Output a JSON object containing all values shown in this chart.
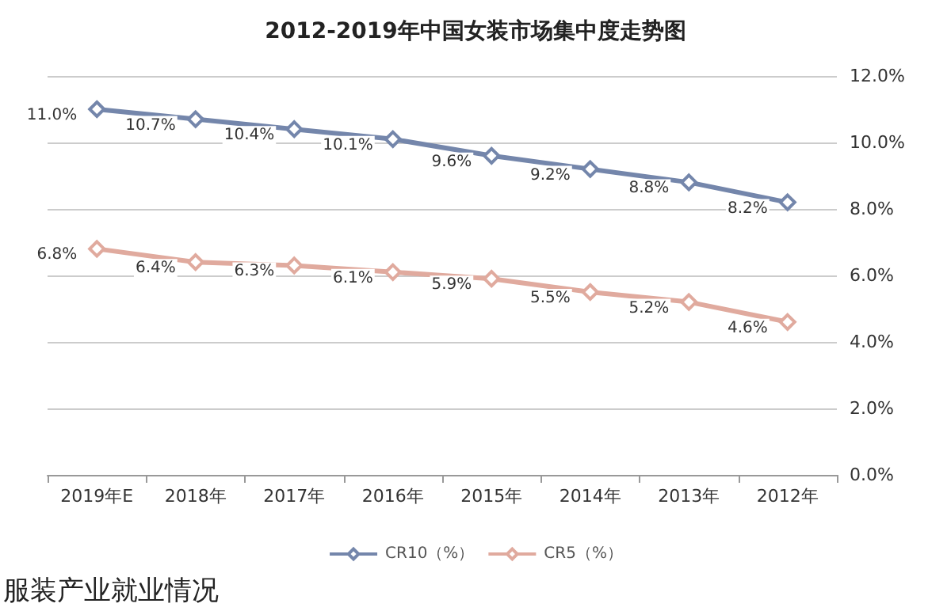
{
  "chart_data": {
    "type": "line",
    "title": "2012-2019年中国女装市场集中度走势图",
    "categories": [
      "2019年E",
      "2018年",
      "2017年",
      "2016年",
      "2015年",
      "2014年",
      "2013年",
      "2012年"
    ],
    "series": [
      {
        "name": "CR10（%）",
        "color": "#7486ab",
        "values": [
          11.0,
          10.7,
          10.4,
          10.1,
          9.6,
          9.2,
          8.8,
          8.2
        ],
        "value_labels": [
          "11.0%",
          "10.7%",
          "10.4%",
          "10.1%",
          "9.6%",
          "9.2%",
          "8.8%",
          "8.2%"
        ]
      },
      {
        "name": "CR5（%）",
        "color": "#e0aa9e",
        "values": [
          6.8,
          6.4,
          6.3,
          6.1,
          5.9,
          5.5,
          5.2,
          4.6
        ],
        "value_labels": [
          "6.8%",
          "6.4%",
          "6.3%",
          "6.1%",
          "5.9%",
          "5.5%",
          "5.2%",
          "4.6%"
        ]
      }
    ],
    "ylim": [
      0,
      12
    ],
    "yticks": [
      {
        "value": 0,
        "label": "0.0%"
      },
      {
        "value": 2,
        "label": "2.0%"
      },
      {
        "value": 4,
        "label": "4.0%"
      },
      {
        "value": 6,
        "label": "6.0%"
      },
      {
        "value": 8,
        "label": "8.0%"
      },
      {
        "value": 10,
        "label": "10.0%"
      },
      {
        "value": 12,
        "label": "12.0%"
      }
    ],
    "grid": "y",
    "legend": "bottom",
    "marker": "diamond",
    "line_style": "solid",
    "annotations": [
      "服装产业就业情况"
    ]
  }
}
